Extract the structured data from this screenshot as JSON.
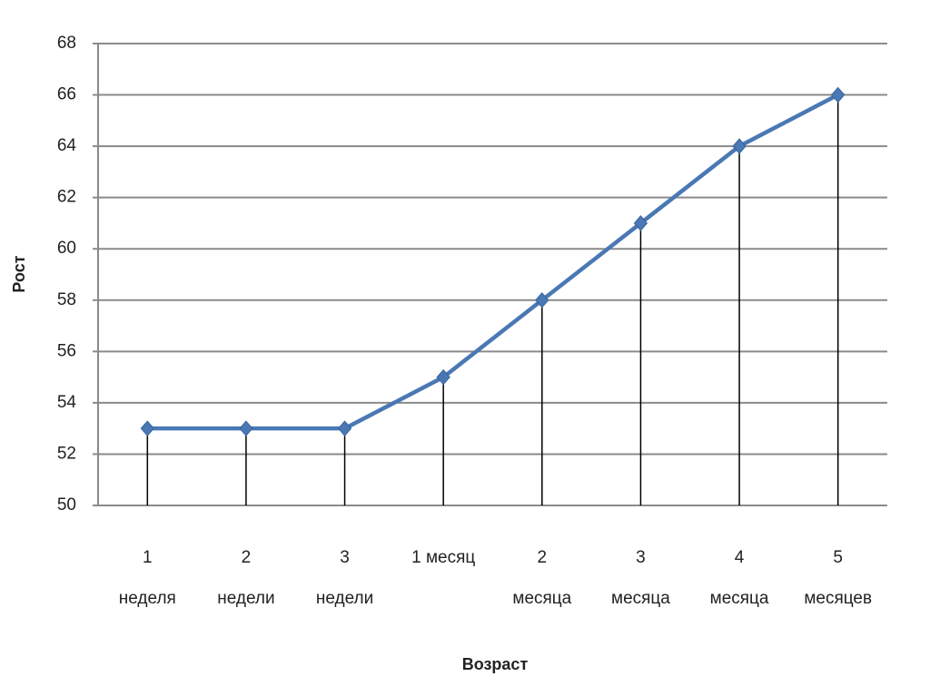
{
  "chart_data": {
    "type": "line",
    "categories": [
      "1\nнеделя",
      "2\nнедели",
      "3\nнедели",
      "1 месяц",
      "2\nмесяца",
      "3\nмесяца",
      "4\nмесяца",
      "5\nмесяцев"
    ],
    "series": [
      {
        "color": "#4a78b4",
        "values": [
          53,
          53,
          53,
          55,
          58,
          61,
          64,
          66
        ]
      }
    ],
    "ylim": [
      50,
      68
    ],
    "yticks": [
      50,
      52,
      54,
      56,
      58,
      60,
      62,
      64,
      66,
      68
    ],
    "y_label": "Рост",
    "x_label": "Возраст",
    "grid": true,
    "drop_lines": true
  }
}
